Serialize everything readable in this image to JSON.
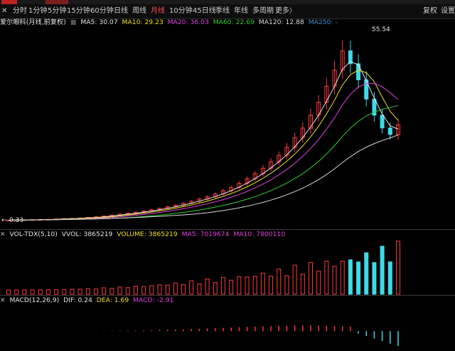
{
  "toolbar": {
    "periods": [
      "分时",
      "1分钟",
      "5分钟",
      "15分钟",
      "60分钟",
      "日线",
      "周线",
      "月线",
      "10分钟",
      "45日线",
      "季线",
      "年线",
      "多周期",
      "更多"
    ],
    "active_period": "月线",
    "more_arrow": "〉",
    "right_buttons": [
      "复权",
      "设置"
    ]
  },
  "main": {
    "stock_label": "爱尔眼科(月线,前复权)",
    "ma_items": [
      {
        "label": "MA5: 30.07",
        "color": "#e6e6e6"
      },
      {
        "label": "MA10: 29.23",
        "color": "#f0e020"
      },
      {
        "label": "MA20: 36.03",
        "color": "#e040e0"
      },
      {
        "label": "MA60: 22.69",
        "color": "#30d030"
      },
      {
        "label": "MA120: 12.88",
        "color": "#d8d8d8"
      },
      {
        "label": "MA250: -",
        "color": "#3a8fd8"
      }
    ],
    "high_label": "55.54",
    "low_label": "0.33",
    "low_arrow": "←"
  },
  "volume": {
    "title": "VOL-TDX(5,10)",
    "items": [
      {
        "label": "VVOL: 3865219",
        "color": "#e6e6e6"
      },
      {
        "label": "VOLUME: 3865219",
        "color": "#f0e020"
      },
      {
        "label": "MA5: 7019674",
        "color": "#e040e0"
      },
      {
        "label": "MA10: 7800110",
        "color": "#e040e0"
      }
    ]
  },
  "macd": {
    "title": "MACD(12,26,9)",
    "items": [
      {
        "label": "DIF: 0.24",
        "color": "#e6e6e6"
      },
      {
        "label": "DEA: 1.69",
        "color": "#f0e020"
      },
      {
        "label": "MACD: -2.91",
        "color": "#e040e0"
      }
    ]
  },
  "chart_data": {
    "type": "candlestick",
    "period": "monthly",
    "price_range": [
      0.33,
      55.54
    ],
    "close_price_series_approx": [
      0.33,
      0.4,
      0.45,
      0.5,
      0.55,
      0.6,
      0.7,
      0.8,
      0.9,
      1.0,
      1.2,
      1.4,
      1.6,
      1.9,
      2.2,
      2.5,
      2.8,
      3.2,
      3.6,
      4.0,
      4.5,
      5.0,
      5.6,
      6.2,
      6.9,
      7.6,
      8.5,
      9.5,
      10.5,
      11.8,
      13.2,
      14.8,
      16.5,
      18.5,
      20.5,
      23.0,
      26.0,
      29.0,
      33.0,
      37.0,
      42.0,
      47.0,
      53.0,
      49.0,
      44.0,
      38.0,
      33.0,
      29.0,
      27.0,
      30.0
    ]
  }
}
